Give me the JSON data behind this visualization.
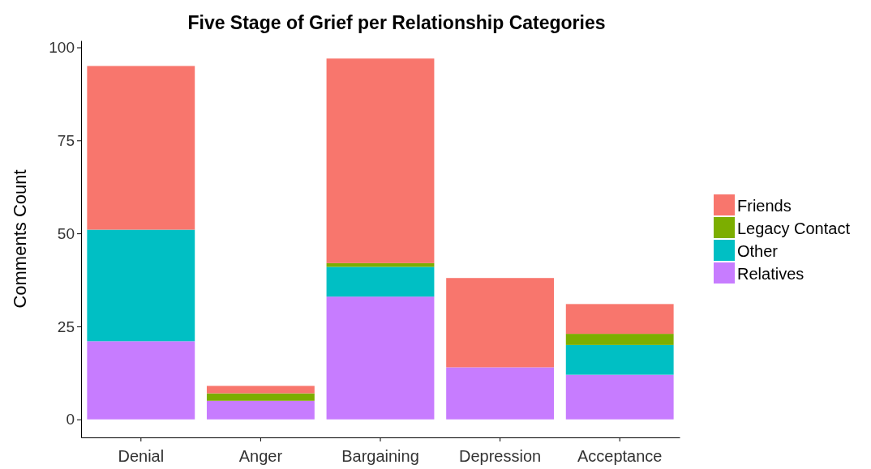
{
  "chart_data": {
    "type": "bar",
    "title": "Five Stage of Grief per Relationship Categories",
    "ylabel": "Comments Count",
    "categories": [
      "Denial",
      "Anger",
      "Bargaining",
      "Depression",
      "Acceptance"
    ],
    "stacked": true,
    "legend": "right",
    "grid": false,
    "ylim": [
      -4.85,
      101.85
    ],
    "yticks": [
      0,
      25,
      50,
      75,
      100
    ],
    "series": [
      {
        "name": "Relatives",
        "color": "#c77cff",
        "values": [
          21,
          5,
          33,
          14,
          12
        ]
      },
      {
        "name": "Other",
        "color": "#00bfc4",
        "values": [
          30,
          0,
          8,
          0,
          8
        ]
      },
      {
        "name": "Legacy Contact",
        "color": "#7cae00",
        "values": [
          0,
          2,
          1,
          0,
          3
        ]
      },
      {
        "name": "Friends",
        "color": "#f8766d",
        "values": [
          44,
          2,
          55,
          24,
          8
        ]
      }
    ]
  }
}
